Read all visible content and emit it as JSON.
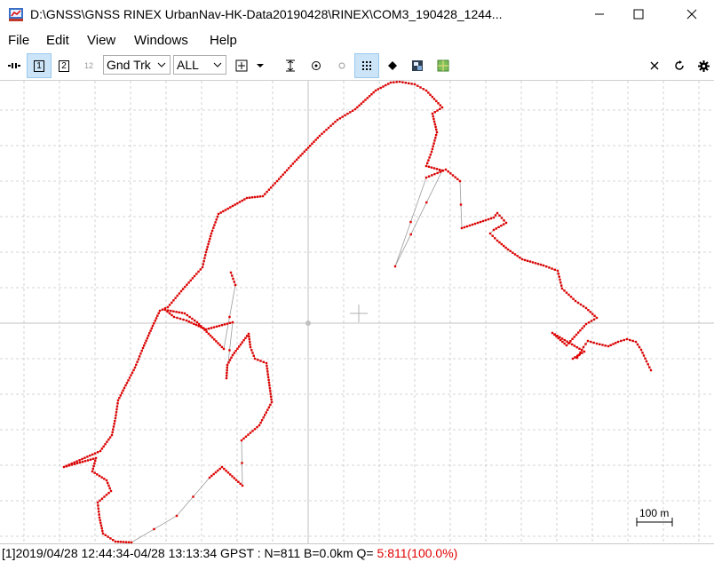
{
  "window": {
    "title": "D:\\GNSS\\GNSS RINEX UrbanNav-HK-Data20190428\\RINEX\\COM3_190428_1244...",
    "icon": "rtkplot-app-icon"
  },
  "menu": [
    "File",
    "Edit",
    "View",
    "Windows",
    "Help"
  ],
  "toolbar": {
    "btn1": "1",
    "btn2": "2",
    "btn12": "12",
    "plot_type": "Gnd Trk",
    "sat_filter": "ALL"
  },
  "plot": {
    "scale_label": "100 m",
    "track_color": "#e00000",
    "grid_color": "#c8c8c8",
    "line_color": "#9a9a9a"
  },
  "status": {
    "text": "[1]2019/04/28 12:44:34-04/28 13:13:34 GPST : N=811 B=0.0km Q= ",
    "quality": "5:811(100.0%)"
  }
}
